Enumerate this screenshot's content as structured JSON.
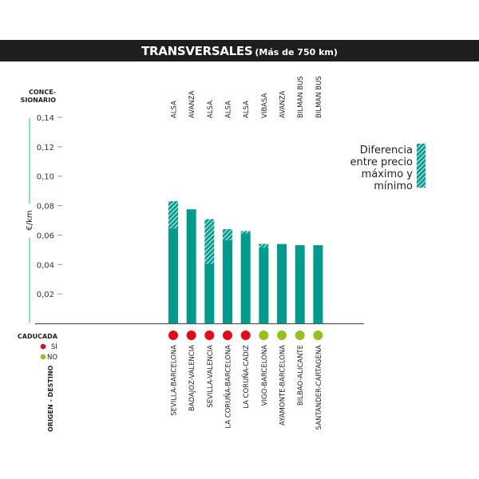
{
  "title": {
    "main": "TRANSVERSALES",
    "sub": "(Más de 750 km)"
  },
  "labels": {
    "concesionario": [
      "CONCE-",
      "SIONARIO"
    ],
    "caducada": "CADUCADA",
    "si": "SÍ",
    "no": "NO",
    "origen_destino": "ORIGEN - DESTINO",
    "legend_range": [
      "Diferencia",
      "entre precio",
      "máximo y",
      "mínimo"
    ]
  },
  "colors": {
    "bar": "#009b8d",
    "expired": "#e30b17",
    "not_expired": "#95c11f",
    "axis_line": "#3cc9b8"
  },
  "chart_data": {
    "type": "bar",
    "ylabel": "€/km",
    "ylim": [
      0,
      0.14
    ],
    "yticks": [
      "0,02",
      "0,04",
      "0,06",
      "0,08",
      "0,10",
      "0,12",
      "0,14"
    ],
    "ytick_values": [
      0.02,
      0.04,
      0.06,
      0.08,
      0.1,
      0.12,
      0.14
    ],
    "grid": false,
    "legend_position": "right",
    "categories": [
      "SEVILLA-BARCELONA",
      "BADAJOZ-VALENCIA",
      "SEVILLA-VALENCIA",
      "LA CORUÑA-BARCELONA",
      "LA CORUÑA-CADIZ",
      "VIGO-BARCELONA",
      "AYAMONTE-BARCELONA",
      "BILBAO-ALICANTE",
      "SANTANDER-CARTAGENA"
    ],
    "operators": [
      "ALSA",
      "AVANZA",
      "ALSA",
      "ALSA",
      "ALSA",
      "VIBASA",
      "AVANZA",
      "BILMAN BUS",
      "BILMAN BUS"
    ],
    "min_price": [
      0.0645,
      0.0775,
      0.0405,
      0.0566,
      0.0612,
      0.0515,
      0.0539,
      0.0531,
      0.0531
    ],
    "max_price": [
      0.083,
      0.0775,
      0.0708,
      0.064,
      0.0627,
      0.054,
      0.0539,
      0.0531,
      0.0531
    ],
    "expired": [
      true,
      true,
      true,
      true,
      true,
      false,
      false,
      false,
      false
    ]
  }
}
